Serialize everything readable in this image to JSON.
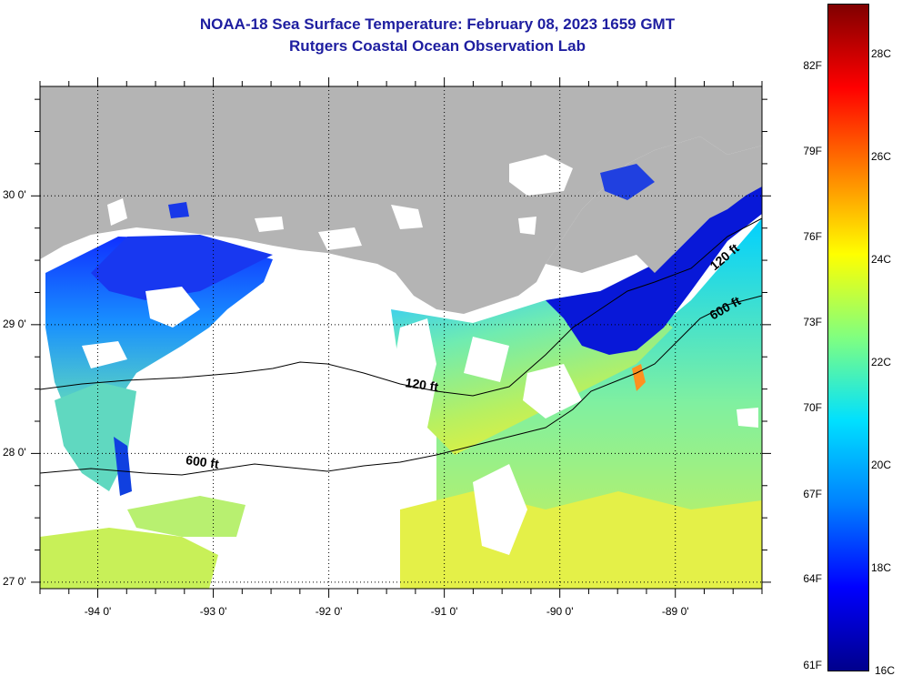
{
  "title": {
    "line1": "NOAA-18 Sea Surface Temperature:  February 08, 2023 1659 GMT",
    "line2": "Rutgers Coastal Ocean Observation Lab"
  },
  "map": {
    "lon_range": [
      -94.5,
      -88.25
    ],
    "lat_range": [
      26.95,
      30.85
    ],
    "lat_ticks": [
      {
        "value": 30,
        "label": "30 0'"
      },
      {
        "value": 29,
        "label": "29 0'"
      },
      {
        "value": 28,
        "label": "28 0'"
      },
      {
        "value": 27,
        "label": "27 0'"
      }
    ],
    "lon_ticks": [
      {
        "value": -94,
        "label": "-94 0'"
      },
      {
        "value": -93,
        "label": "-93 0'"
      },
      {
        "value": -92,
        "label": "-92 0'"
      },
      {
        "value": -91,
        "label": "-91 0'"
      },
      {
        "value": -90,
        "label": "-90 0'"
      },
      {
        "value": -89,
        "label": "-89 0'"
      }
    ],
    "contour_labels": [
      {
        "text": "120 ft",
        "lon": -91.2,
        "lat": 28.5,
        "angle": 8
      },
      {
        "text": "600 ft",
        "lon": -93.1,
        "lat": 27.9,
        "angle": 8
      },
      {
        "text": "120 ft",
        "lon": -88.55,
        "lat": 29.5,
        "angle": -40
      },
      {
        "text": "600 ft",
        "lon": -88.55,
        "lat": 29.1,
        "angle": -30
      }
    ],
    "colors": {
      "land": "#b4b4b4",
      "cloud": "#ffffff",
      "contour": "#000000"
    }
  },
  "colorbar": {
    "range_c": [
      16,
      29
    ],
    "f_labels": [
      {
        "value_c": 16.11,
        "label": "61F"
      },
      {
        "value_c": 17.78,
        "label": "64F"
      },
      {
        "value_c": 19.44,
        "label": "67F"
      },
      {
        "value_c": 21.11,
        "label": "70F"
      },
      {
        "value_c": 22.78,
        "label": "73F"
      },
      {
        "value_c": 24.44,
        "label": "76F"
      },
      {
        "value_c": 26.11,
        "label": "79F"
      },
      {
        "value_c": 27.78,
        "label": "82F"
      }
    ],
    "c_labels": [
      {
        "value_c": 16,
        "label": "16C"
      },
      {
        "value_c": 18,
        "label": "18C"
      },
      {
        "value_c": 20,
        "label": "20C"
      },
      {
        "value_c": 22,
        "label": "22C"
      },
      {
        "value_c": 24,
        "label": "24C"
      },
      {
        "value_c": 26,
        "label": "26C"
      },
      {
        "value_c": 28,
        "label": "28C"
      }
    ],
    "stops": [
      "#00008c",
      "#0000ff",
      "#0080ff",
      "#00e0ff",
      "#80ff80",
      "#ffff00",
      "#ff8000",
      "#ff0000",
      "#800000"
    ]
  }
}
